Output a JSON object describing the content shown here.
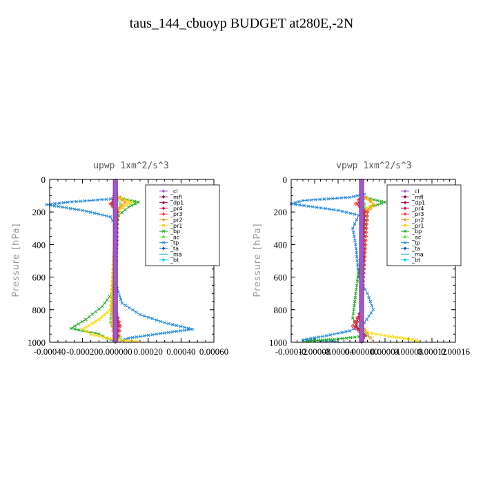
{
  "title": "taus_144_cbuoyp  BUDGET at280E,-2N",
  "legend_entries": [
    {
      "label": "_cl",
      "color": "#9b59d0",
      "marker": "diamond"
    },
    {
      "label": "_mfl",
      "color": "#8b0a50",
      "marker": "diamond"
    },
    {
      "label": "_dp1",
      "color": "#b0104a",
      "marker": "diamond"
    },
    {
      "label": "_pr4",
      "color": "#d01040",
      "marker": "diamond"
    },
    {
      "label": "_pr3",
      "color": "#ff4040",
      "marker": "diamond"
    },
    {
      "label": "_pr2",
      "color": "#ff9a20",
      "marker": "diamond"
    },
    {
      "label": "_pr1",
      "color": "#ffd700",
      "marker": "circle"
    },
    {
      "label": "_bp",
      "color": "#22aa22",
      "marker": "x"
    },
    {
      "label": "_ac",
      "color": "#66dd44",
      "marker": "circle"
    },
    {
      "label": "_tp",
      "color": "#2288dd",
      "marker": "x"
    },
    {
      "label": "_ta",
      "color": "#1155cc",
      "marker": "arrow"
    },
    {
      "label": "_ma",
      "color": "#00aacc",
      "marker": "dash"
    },
    {
      "label": "_bt",
      "color": "#00ddee",
      "marker": "circle"
    }
  ],
  "chart_data": [
    {
      "type": "line",
      "title": "upwp   1xm^2/s^3",
      "ylabel": "Pressure [hPa]",
      "xlabel": "",
      "ylim": [
        1000,
        0
      ],
      "yticks": [
        0,
        200,
        400,
        600,
        800,
        1000
      ],
      "xlim": [
        -0.0004,
        0.0006
      ],
      "xtick_values": [
        -0.0004,
        -0.0002,
        0.0,
        0.0002,
        0.0004,
        0.0006
      ],
      "xtick_labels": [
        "-0.00040",
        "-0.00020",
        "0.000000",
        "0.00020",
        "0.00040",
        "0.00060"
      ],
      "grid": false,
      "legend_position": "top-right",
      "series": [
        {
          "name": "_tp",
          "color": "#2288dd",
          "marker": "x",
          "x": [
            1e-05,
            -3e-05,
            -0.00029,
            -0.00042,
            -0.0002,
            -3e-05,
            1e-05,
            1e-05,
            -1e-05,
            4e-05,
            0.00015,
            0.0003,
            0.00047,
            0.00025,
            8e-05,
            2e-05
          ],
          "y": [
            90,
            120,
            140,
            155,
            190,
            230,
            300,
            400,
            600,
            760,
            830,
            880,
            920,
            950,
            975,
            995
          ]
        },
        {
          "name": "_bp",
          "color": "#22aa22",
          "marker": "x",
          "x": [
            0.0,
            5e-05,
            0.00014,
            8e-05,
            2e-05,
            0.0,
            -2e-05,
            -8e-05,
            -0.00018,
            -0.00027,
            -0.0001,
            -5e-05,
            0.0
          ],
          "y": [
            100,
            120,
            140,
            170,
            220,
            300,
            700,
            780,
            860,
            915,
            950,
            975,
            995
          ]
        },
        {
          "name": "_ac",
          "color": "#66dd44",
          "marker": "circle",
          "x": [
            0.0,
            3e-05,
            2e-05,
            0.0,
            -3e-05,
            -1e-05,
            3e-05,
            0.0
          ],
          "y": [
            100,
            150,
            200,
            400,
            880,
            920,
            970,
            995
          ]
        },
        {
          "name": "_pr1",
          "color": "#ffd700",
          "marker": "circle",
          "x": [
            0.0,
            4e-05,
            0.0001,
            6e-05,
            1e-05,
            0.0,
            -3e-05,
            -0.0001,
            -0.0002,
            -0.00015,
            -5e-05,
            5e-05,
            0.00015
          ],
          "y": [
            100,
            120,
            140,
            160,
            200,
            300,
            800,
            860,
            920,
            950,
            975,
            990,
            995
          ]
        },
        {
          "name": "_pr2",
          "color": "#ff9a20",
          "marker": "diamond",
          "x": [
            0.0,
            6e-05,
            2e-05,
            0.0,
            -2e-05,
            -1e-05,
            2e-05
          ],
          "y": [
            100,
            140,
            180,
            300,
            900,
            960,
            995
          ]
        },
        {
          "name": "_pr3",
          "color": "#ff4040",
          "marker": "diamond",
          "x": [
            0.0,
            -3e-05,
            1e-05,
            0.0,
            3e-05,
            2e-05,
            1e-05
          ],
          "y": [
            100,
            150,
            200,
            800,
            900,
            960,
            995
          ]
        },
        {
          "name": "_pr4",
          "color": "#d01040",
          "marker": "diamond",
          "x": [
            0.0,
            -2e-05,
            1e-05,
            0.0,
            2e-05,
            1e-05,
            0.0
          ],
          "y": [
            100,
            150,
            200,
            800,
            900,
            960,
            995
          ]
        },
        {
          "name": "_dp1",
          "color": "#b0104a",
          "marker": "diamond",
          "x": [
            0.0,
            0.0,
            0.0,
            0.0
          ],
          "y": [
            80,
            400,
            800,
            1000
          ]
        },
        {
          "name": "_mfl",
          "color": "#8b0a50",
          "marker": "diamond",
          "x": [
            0.0,
            0.0
          ],
          "y": [
            0,
            1000
          ]
        },
        {
          "name": "_cl",
          "color": "#9b59d0",
          "marker": "diamond",
          "x": [
            0.0,
            0.0
          ],
          "y": [
            0,
            1000
          ]
        }
      ]
    },
    {
      "type": "line",
      "title": "vpwp   1xm^2/s^3",
      "ylabel": "Pressure [hPa]",
      "xlabel": "",
      "ylim": [
        1000,
        0
      ],
      "yticks": [
        0,
        200,
        400,
        600,
        800,
        1000
      ],
      "xlim": [
        -0.00012,
        0.00016
      ],
      "xtick_values": [
        -0.00012,
        -8e-05,
        -4e-05,
        0.0,
        4e-05,
        8e-05,
        0.00012,
        0.00016
      ],
      "xtick_labels": [
        "-0.00012",
        "-0.00008",
        "-0.00004",
        "0.000000",
        "0.00004",
        "0.00008",
        "0.00012",
        "0.00016"
      ],
      "grid": false,
      "legend_position": "top-right",
      "series": [
        {
          "name": "_tp",
          "color": "#2288dd",
          "marker": "x",
          "x": [
            5e-06,
            -2e-05,
            -0.0001,
            -0.00012,
            -4e-05,
            -5e-06,
            -1.5e-05,
            -1e-05,
            -5e-06,
            1e-05,
            2e-05,
            5e-06,
            -2e-05,
            -6e-05,
            -0.0001,
            -4e-05
          ],
          "y": [
            90,
            110,
            130,
            150,
            190,
            220,
            300,
            400,
            600,
            700,
            800,
            880,
            930,
            960,
            985,
            995
          ]
        },
        {
          "name": "_bp",
          "color": "#22aa22",
          "marker": "x",
          "x": [
            0.0,
            1.5e-05,
            4e-05,
            1.5e-05,
            5e-06,
            5e-06,
            -1e-05,
            -1.5e-05,
            -5e-06,
            1e-05,
            -4e-05,
            -0.0001
          ],
          "y": [
            100,
            120,
            140,
            170,
            200,
            300,
            700,
            850,
            920,
            960,
            980,
            995
          ]
        },
        {
          "name": "_ac",
          "color": "#66dd44",
          "marker": "circle",
          "x": [
            0.0,
            5e-06,
            1e-05,
            5e-06,
            5e-06,
            0.0,
            0.0
          ],
          "y": [
            100,
            150,
            250,
            300,
            400,
            900,
            995
          ]
        },
        {
          "name": "_pr1",
          "color": "#ffd700",
          "marker": "circle",
          "x": [
            0.0,
            1e-05,
            2e-05,
            1e-05,
            0.0,
            0.0,
            1e-05,
            4e-05,
            8e-05,
            0.0001
          ],
          "y": [
            100,
            120,
            150,
            180,
            250,
            900,
            940,
            960,
            980,
            995
          ]
        },
        {
          "name": "_pr2",
          "color": "#ff9a20",
          "marker": "diamond",
          "x": [
            0.0,
            1.5e-05,
            2e-05,
            1e-05,
            0.0,
            0.0,
            1e-05,
            2e-05
          ],
          "y": [
            100,
            130,
            160,
            200,
            250,
            900,
            950,
            995
          ]
        },
        {
          "name": "_pr3",
          "color": "#ff4040",
          "marker": "diamond",
          "x": [
            0.0,
            -1e-05,
            1e-05,
            0.0,
            -1.5e-05,
            5e-06,
            0.0
          ],
          "y": [
            100,
            150,
            200,
            800,
            900,
            960,
            995
          ]
        },
        {
          "name": "_pr4",
          "color": "#d01040",
          "marker": "diamond",
          "x": [
            0.0,
            -5e-06,
            5e-06,
            0.0,
            -1e-05,
            5e-06,
            0.0
          ],
          "y": [
            100,
            150,
            200,
            800,
            900,
            960,
            995
          ]
        },
        {
          "name": "_dp1",
          "color": "#b0104a",
          "marker": "diamond",
          "x": [
            0.0,
            0.0,
            0.0
          ],
          "y": [
            80,
            500,
            1000
          ]
        },
        {
          "name": "_mfl",
          "color": "#8b0a50",
          "marker": "diamond",
          "x": [
            0.0,
            0.0
          ],
          "y": [
            0,
            1000
          ]
        },
        {
          "name": "_cl",
          "color": "#9b59d0",
          "marker": "diamond",
          "x": [
            0.0,
            0.0
          ],
          "y": [
            0,
            1000
          ]
        }
      ]
    }
  ]
}
